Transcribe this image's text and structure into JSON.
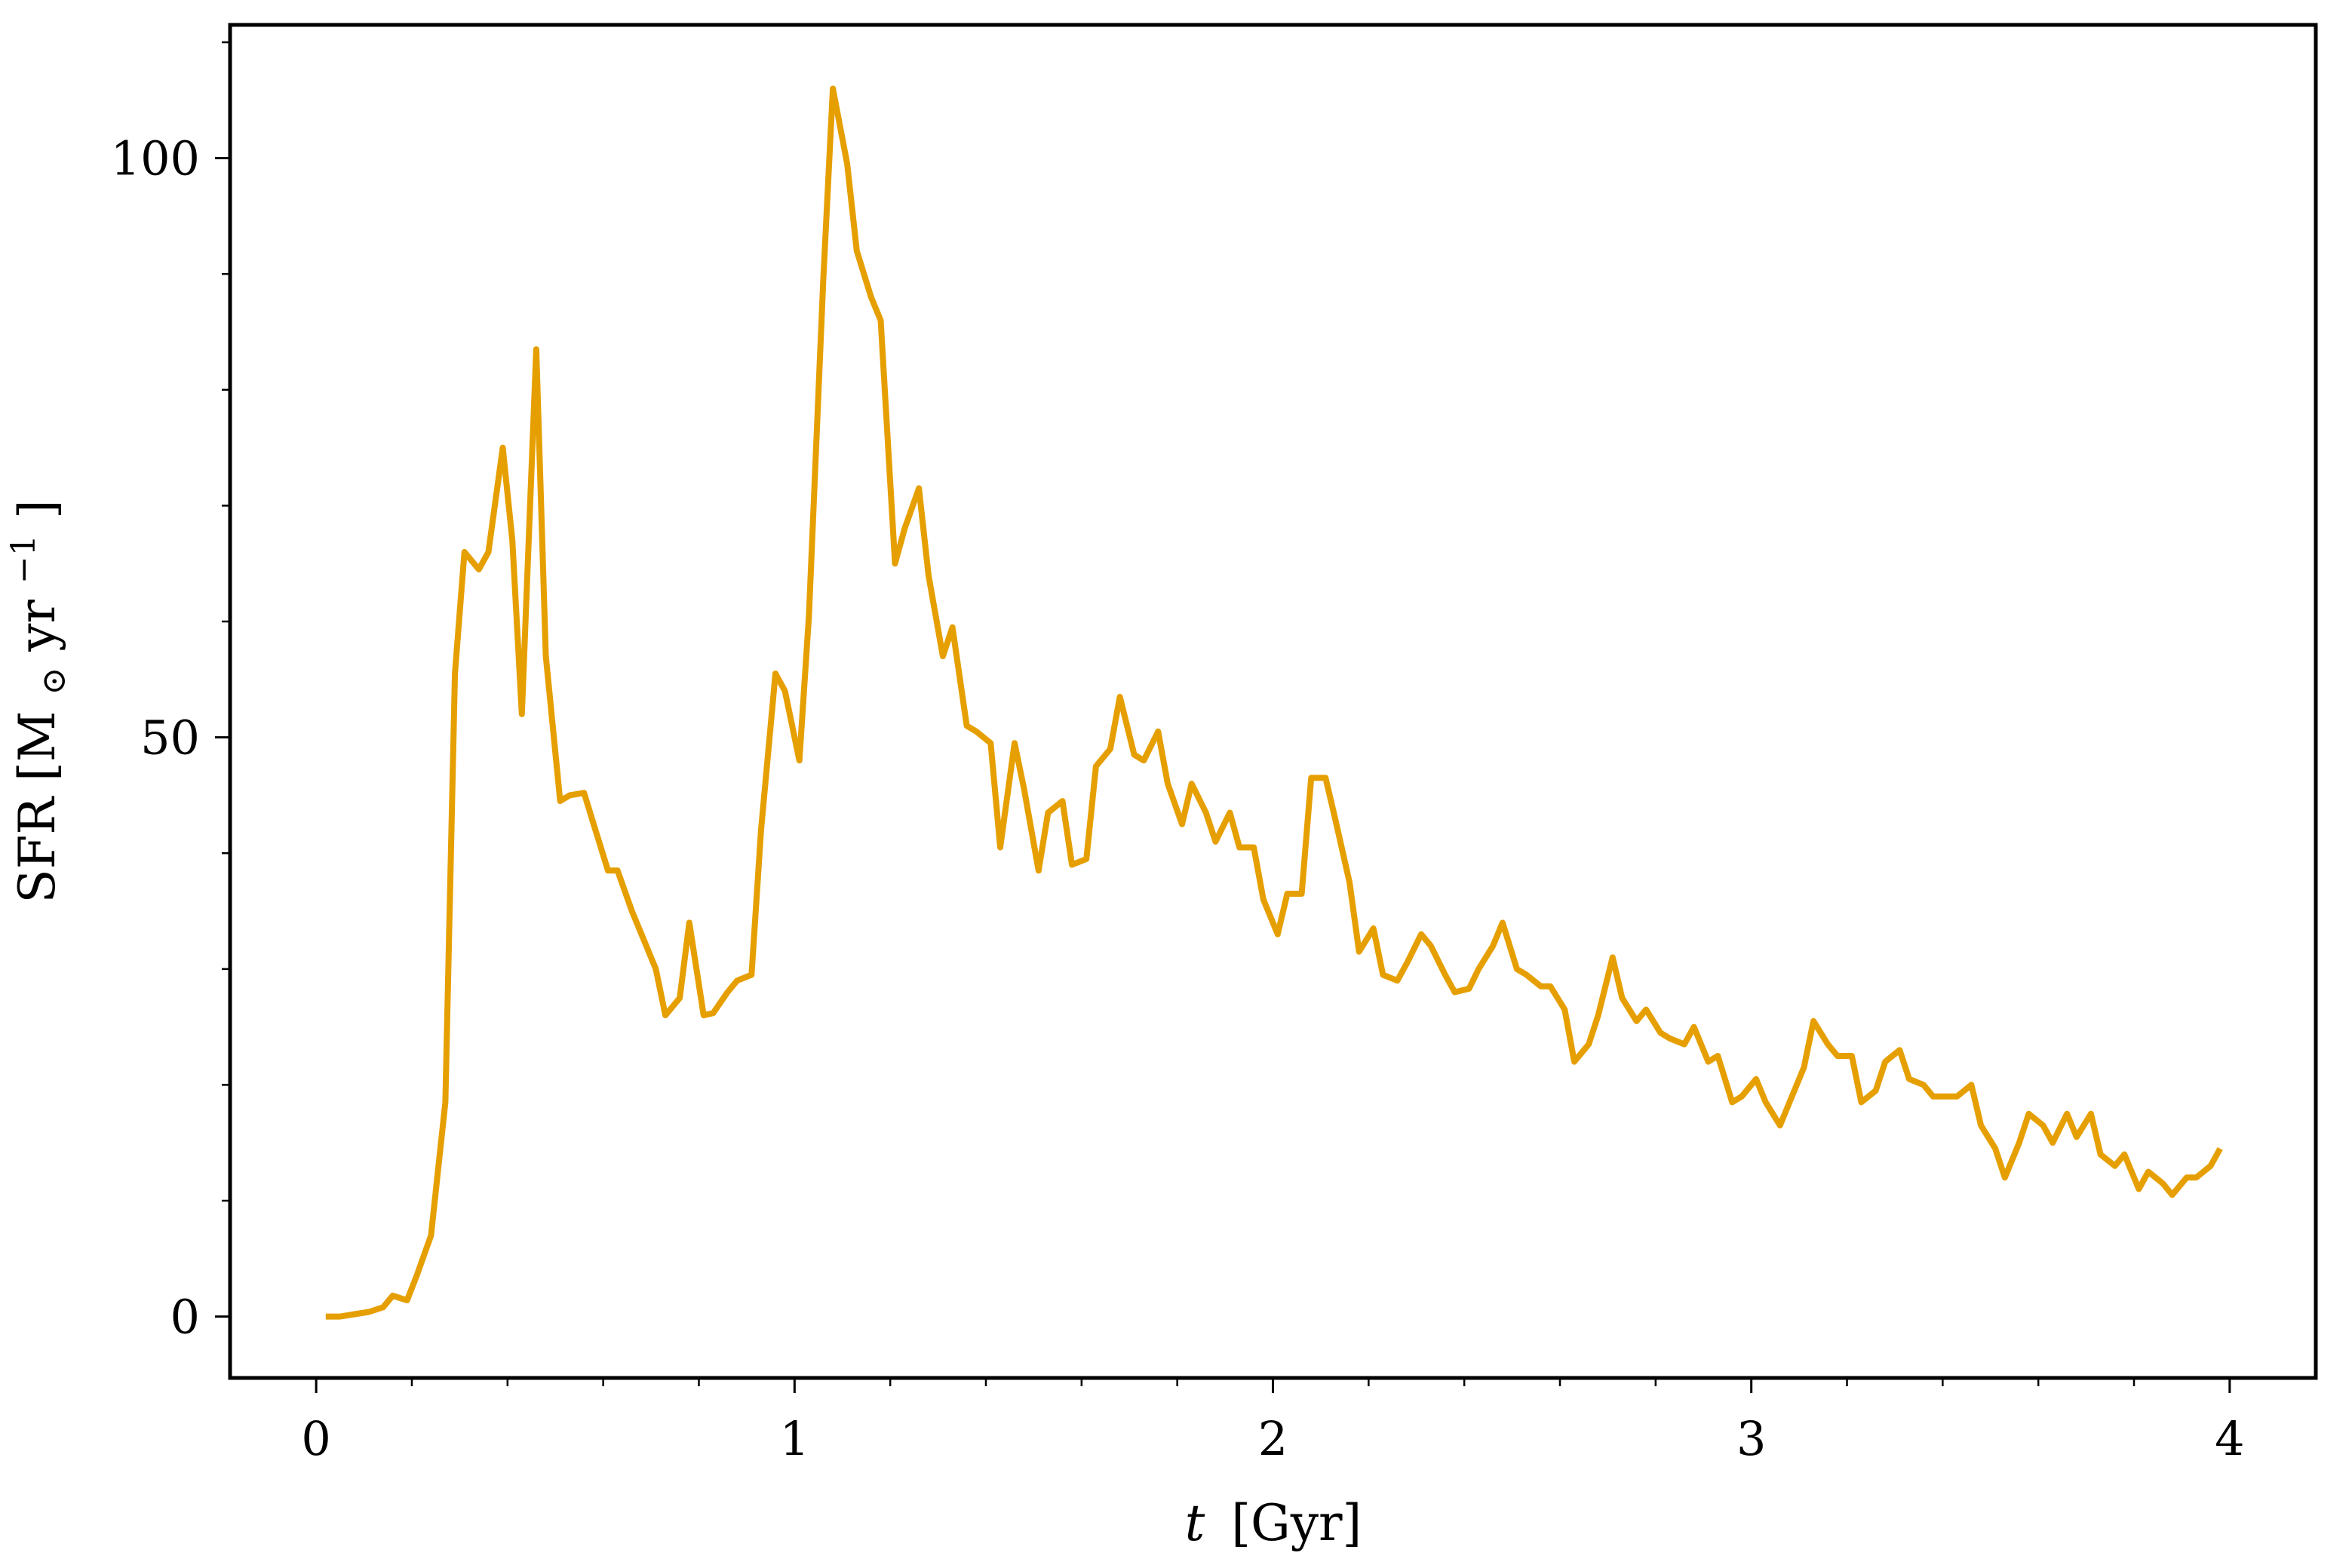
{
  "chart_data": {
    "type": "line",
    "title": "",
    "xlabel": {
      "var": "t",
      "units": "[Gyr]"
    },
    "ylabel": {
      "prefix": "SFR [M",
      "sub": "⊙",
      "mid": " yr",
      "sup": "−1",
      "suffix": "]"
    },
    "xlim": [
      -0.18,
      4.18
    ],
    "ylim": [
      -5.3,
      111.5
    ],
    "xticks": [
      {
        "value": 0,
        "label": "0"
      },
      {
        "value": 1,
        "label": "1"
      },
      {
        "value": 2,
        "label": "2"
      },
      {
        "value": 3,
        "label": "3"
      },
      {
        "value": 4,
        "label": "4"
      }
    ],
    "yticks": [
      {
        "value": 0,
        "label": "0"
      },
      {
        "value": 50,
        "label": "50"
      },
      {
        "value": 100,
        "label": "100"
      }
    ],
    "xminor_step": 0.2,
    "yminor_step": 10,
    "grid": false,
    "legend": "none",
    "series": [
      {
        "name": "SFR",
        "color": "#E69F00",
        "x": [
          0.02,
          0.05,
          0.08,
          0.11,
          0.14,
          0.16,
          0.19,
          0.21,
          0.24,
          0.27,
          0.29,
          0.31,
          0.34,
          0.36,
          0.39,
          0.41,
          0.43,
          0.46,
          0.48,
          0.51,
          0.53,
          0.56,
          0.58,
          0.61,
          0.63,
          0.66,
          0.68,
          0.71,
          0.73,
          0.76,
          0.78,
          0.81,
          0.83,
          0.86,
          0.88,
          0.91,
          0.93,
          0.96,
          0.98,
          1.01,
          1.03,
          1.06,
          1.08,
          1.11,
          1.13,
          1.16,
          1.18,
          1.21,
          1.23,
          1.26,
          1.28,
          1.31,
          1.33,
          1.36,
          1.38,
          1.41,
          1.43,
          1.46,
          1.48,
          1.51,
          1.53,
          1.56,
          1.58,
          1.61,
          1.63,
          1.66,
          1.68,
          1.71,
          1.73,
          1.76,
          1.78,
          1.81,
          1.83,
          1.86,
          1.88,
          1.91,
          1.93,
          1.96,
          1.98,
          2.01,
          2.03,
          2.06,
          2.08,
          2.11,
          2.13,
          2.16,
          2.18,
          2.21,
          2.23,
          2.26,
          2.28,
          2.31,
          2.33,
          2.36,
          2.38,
          2.41,
          2.43,
          2.46,
          2.48,
          2.51,
          2.53,
          2.56,
          2.58,
          2.61,
          2.63,
          2.66,
          2.68,
          2.71,
          2.73,
          2.76,
          2.78,
          2.81,
          2.83,
          2.86,
          2.88,
          2.91,
          2.93,
          2.96,
          2.98,
          3.01,
          3.03,
          3.06,
          3.08,
          3.11,
          3.13,
          3.16,
          3.18,
          3.21,
          3.23,
          3.26,
          3.28,
          3.31,
          3.33,
          3.36,
          3.38,
          3.41,
          3.43,
          3.46,
          3.48,
          3.51,
          3.53,
          3.56,
          3.58,
          3.61,
          3.63,
          3.66,
          3.68,
          3.71,
          3.73,
          3.76,
          3.78,
          3.81,
          3.83,
          3.86,
          3.88,
          3.91,
          3.93,
          3.96,
          3.98
        ],
        "values": [
          0.0,
          0.0,
          0.2,
          0.4,
          0.8,
          1.8,
          1.4,
          3.5,
          7.0,
          18.5,
          55.5,
          66.0,
          64.5,
          66.0,
          75.0,
          67.0,
          52.0,
          83.5,
          57.0,
          44.5,
          45.0,
          45.2,
          42.5,
          38.5,
          38.5,
          35.0,
          33.0,
          30.0,
          26.0,
          27.5,
          34.0,
          26.0,
          26.2,
          28.0,
          29.0,
          29.5,
          42.0,
          55.5,
          54.0,
          48.0,
          60.5,
          89.5,
          106.0,
          99.5,
          92.0,
          88.0,
          86.0,
          65.0,
          68.0,
          71.5,
          64.0,
          57.0,
          59.5,
          51.0,
          50.5,
          49.5,
          40.5,
          49.5,
          45.5,
          38.5,
          43.5,
          44.5,
          39.0,
          39.5,
          47.5,
          49.0,
          53.5,
          48.5,
          48.0,
          50.5,
          46.0,
          42.5,
          46.0,
          43.5,
          41.0,
          43.5,
          40.5,
          40.5,
          36.0,
          33.0,
          36.5,
          36.5,
          46.5,
          46.5,
          43.0,
          37.5,
          31.5,
          33.5,
          29.5,
          29.0,
          30.5,
          33.0,
          32.0,
          29.5,
          28.0,
          28.3,
          30.0,
          32.0,
          34.0,
          30.0,
          29.5,
          28.5,
          28.5,
          26.5,
          22.0,
          23.5,
          26.0,
          31.0,
          27.5,
          25.5,
          26.5,
          24.5,
          24.0,
          23.5,
          25.0,
          22.0,
          22.5,
          18.5,
          19.0,
          20.5,
          18.5,
          16.5,
          18.5,
          21.5,
          25.5,
          23.5,
          22.5,
          22.5,
          18.5,
          19.5,
          22.0,
          23.0,
          20.5,
          20.0,
          19.0,
          19.0,
          19.0,
          20.0,
          16.5,
          14.5,
          12.0,
          15.0,
          17.5,
          16.5,
          15.0,
          17.5,
          15.5,
          17.5,
          14.0,
          13.0,
          14.0,
          11.0,
          12.5,
          11.5,
          10.5,
          12.0,
          12.0,
          13.0,
          14.5
        ]
      }
    ]
  }
}
